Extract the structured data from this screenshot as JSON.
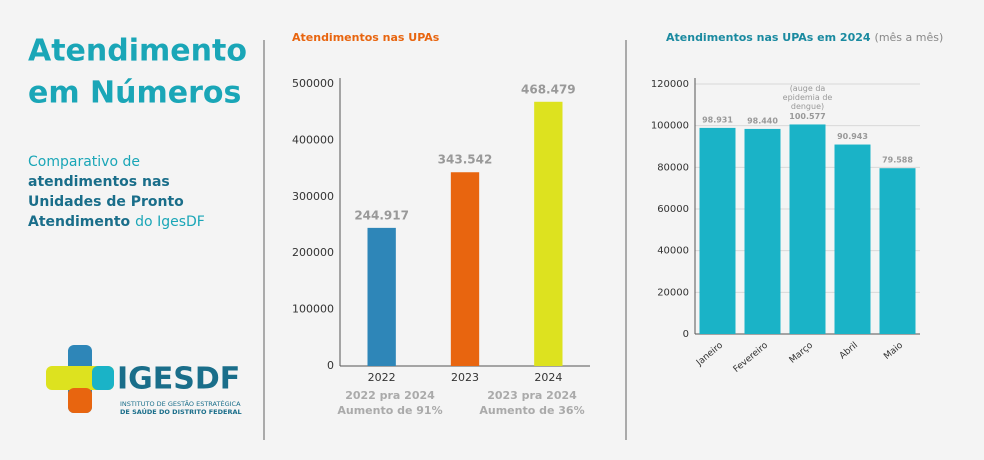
{
  "header": {
    "title": [
      "Atendimento",
      "em Números"
    ],
    "description": [
      [
        {
          "text": "Comparativo de",
          "bold": false
        }
      ],
      [
        {
          "text": "atendimentos nas",
          "bold": true
        }
      ],
      [
        {
          "text": "Unidades de Pronto",
          "bold": true
        }
      ],
      [
        {
          "text": "Atendimento",
          "bold": true
        },
        {
          "text": "do IgesDF",
          "bold": false
        }
      ]
    ]
  },
  "logo": {
    "name": "IGESDF",
    "lines": [
      "INSTITUTO DE GESTÃO ESTRATÉGICA",
      "DE SAÚDE DO DISTRITO FEDERAL"
    ]
  },
  "chart_data": [
    {
      "type": "bar",
      "title": "Atendimentos nas UPAs",
      "categories": [
        "2022",
        "2023",
        "2024"
      ],
      "values": [
        244917,
        343542,
        468479
      ],
      "value_labels": [
        "244.917",
        "343.542",
        "468.479"
      ],
      "colors": [
        "#2e86b8",
        "#e8650f",
        "#dde21f"
      ],
      "ylim": [
        0,
        500000
      ],
      "yticks": [
        0,
        100000,
        200000,
        300000,
        400000,
        500000
      ],
      "grid": false,
      "annotations": [
        [
          "2022 pra 2024",
          "Aumento de 91%"
        ],
        [
          "2023 pra 2024",
          "Aumento de 36%"
        ]
      ]
    },
    {
      "type": "bar",
      "title": "Atendimentos nas UPAs em 2024",
      "subtitle": "(mês a mês)",
      "categories": [
        "Janeiro",
        "Fevereiro",
        "Março",
        "Abril",
        "Maio"
      ],
      "values": [
        98931,
        98440,
        100577,
        90943,
        79588
      ],
      "value_labels": [
        "98.931",
        "98.440",
        "100.577",
        "90.943",
        "79.588"
      ],
      "color": "#1ab3c7",
      "ylim": [
        0,
        120000
      ],
      "yticks": [
        0,
        20000,
        40000,
        60000,
        80000,
        100000,
        120000
      ],
      "grid": true,
      "annotations": [
        {
          "text": "(auge da epidemia de dengue)",
          "category": "Março"
        }
      ]
    }
  ]
}
